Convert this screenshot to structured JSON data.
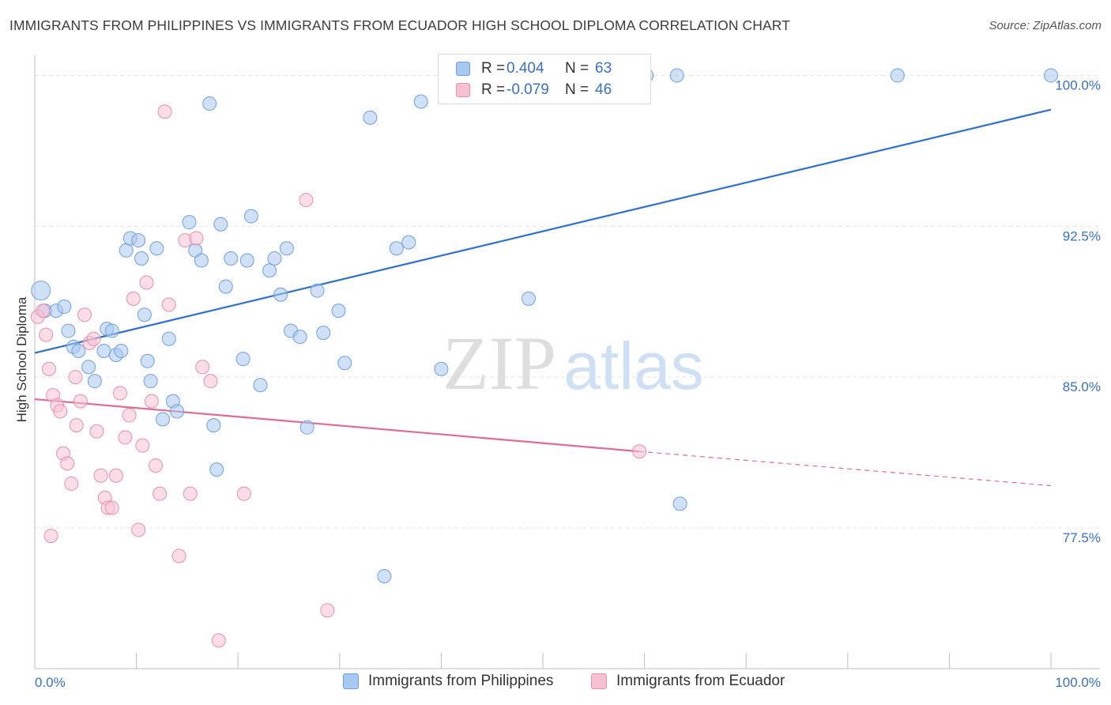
{
  "header": {
    "title": "IMMIGRANTS FROM PHILIPPINES VS IMMIGRANTS FROM ECUADOR HIGH SCHOOL DIPLOMA CORRELATION CHART",
    "source": "Source: ZipAtlas.com"
  },
  "watermark": {
    "zip": "ZIP",
    "atlas": "atlas"
  },
  "legend": {
    "rows": [
      {
        "r_label": "R =",
        "r_value": "0.404",
        "n_label": "N =",
        "n_value": "63",
        "color": "#a9c8f0",
        "border": "#6f9fe0"
      },
      {
        "r_label": "R =",
        "r_value": "-0.079",
        "n_label": "N =",
        "n_value": "46",
        "color": "#f6c1d1",
        "border": "#e890ab"
      }
    ]
  },
  "bottom_legend": [
    {
      "label": "Immigrants from Philippines",
      "color": "#a9c8f0",
      "border": "#6f9fe0"
    },
    {
      "label": "Immigrants from Ecuador",
      "color": "#f6c1d1",
      "border": "#e890ab"
    }
  ],
  "chart_data": {
    "type": "scatter",
    "title": "IMMIGRANTS FROM PHILIPPINES VS IMMIGRANTS FROM ECUADOR HIGH SCHOOL DIPLOMA CORRELATION CHART",
    "xlabel": "",
    "ylabel": "High School Diploma",
    "xlim": [
      0,
      100
    ],
    "ylim": [
      70.5,
      101
    ],
    "x_tick_labels": [
      "0.0%",
      "100.0%"
    ],
    "y_ticks": [
      77.5,
      85.0,
      92.5,
      100.0
    ],
    "y_tick_labels": [
      "77.5%",
      "85.0%",
      "92.5%",
      "100.0%"
    ],
    "grid": true,
    "legend_position": "top-center",
    "series": [
      {
        "name": "Immigrants from Philippines",
        "color": "#6f9fe0",
        "fill": "#a9c8f0",
        "trend": {
          "x": [
            0,
            100
          ],
          "y": [
            86.2,
            98.3
          ],
          "style": "solid",
          "color": "#2f6fd0"
        },
        "points": [
          [
            0.6,
            89.3
          ],
          [
            1.0,
            88.3
          ],
          [
            2.1,
            88.3
          ],
          [
            2.9,
            88.5
          ],
          [
            3.3,
            87.3
          ],
          [
            3.8,
            86.5
          ],
          [
            4.3,
            86.3
          ],
          [
            5.3,
            85.5
          ],
          [
            5.9,
            84.8
          ],
          [
            6.8,
            86.3
          ],
          [
            7.1,
            87.4
          ],
          [
            7.6,
            87.3
          ],
          [
            8.0,
            86.1
          ],
          [
            8.5,
            86.3
          ],
          [
            9.0,
            91.3
          ],
          [
            9.4,
            91.9
          ],
          [
            10.2,
            91.8
          ],
          [
            10.5,
            90.9
          ],
          [
            10.8,
            88.1
          ],
          [
            11.1,
            85.8
          ],
          [
            11.4,
            84.8
          ],
          [
            12.0,
            91.4
          ],
          [
            12.6,
            82.9
          ],
          [
            13.2,
            86.9
          ],
          [
            13.6,
            83.8
          ],
          [
            14.0,
            83.3
          ],
          [
            15.2,
            92.7
          ],
          [
            15.8,
            91.3
          ],
          [
            16.4,
            90.8
          ],
          [
            17.2,
            98.6
          ],
          [
            17.6,
            82.6
          ],
          [
            17.9,
            80.4
          ],
          [
            18.3,
            92.6
          ],
          [
            18.8,
            89.5
          ],
          [
            19.3,
            90.9
          ],
          [
            20.5,
            85.9
          ],
          [
            20.9,
            90.8
          ],
          [
            21.3,
            93.0
          ],
          [
            22.2,
            84.6
          ],
          [
            23.1,
            90.3
          ],
          [
            23.6,
            90.9
          ],
          [
            24.2,
            89.1
          ],
          [
            24.8,
            91.4
          ],
          [
            25.2,
            87.3
          ],
          [
            26.1,
            87.0
          ],
          [
            26.8,
            82.5
          ],
          [
            27.8,
            89.3
          ],
          [
            28.4,
            87.2
          ],
          [
            29.9,
            88.3
          ],
          [
            30.5,
            85.7
          ],
          [
            33.0,
            97.9
          ],
          [
            34.4,
            75.1
          ],
          [
            35.6,
            91.4
          ],
          [
            36.8,
            91.7
          ],
          [
            38.0,
            98.7
          ],
          [
            40.0,
            85.4
          ],
          [
            48.6,
            88.9
          ],
          [
            60.2,
            100.0
          ],
          [
            63.2,
            100.0
          ],
          [
            63.5,
            78.7
          ],
          [
            84.9,
            100.0
          ],
          [
            100.0,
            100.0
          ],
          [
            52.0,
            100.0
          ]
        ]
      },
      {
        "name": "Immigrants from Ecuador",
        "color": "#e890ab",
        "fill": "#f6c1d1",
        "trend": {
          "x": [
            0,
            59.5,
            100
          ],
          "y": [
            83.9,
            81.3,
            79.6
          ],
          "style": "solid-then-dashed",
          "color": "#e06b94"
        },
        "points": [
          [
            0.3,
            88.0
          ],
          [
            0.8,
            88.3
          ],
          [
            1.1,
            87.1
          ],
          [
            1.4,
            85.4
          ],
          [
            1.8,
            84.1
          ],
          [
            2.2,
            83.6
          ],
          [
            2.5,
            83.3
          ],
          [
            2.8,
            81.2
          ],
          [
            3.2,
            80.7
          ],
          [
            3.6,
            79.7
          ],
          [
            4.1,
            82.6
          ],
          [
            4.5,
            83.8
          ],
          [
            4.9,
            88.1
          ],
          [
            5.4,
            86.7
          ],
          [
            5.8,
            86.9
          ],
          [
            6.1,
            82.3
          ],
          [
            6.5,
            80.1
          ],
          [
            6.9,
            79.0
          ],
          [
            7.2,
            78.5
          ],
          [
            7.6,
            78.5
          ],
          [
            8.0,
            80.1
          ],
          [
            8.4,
            84.2
          ],
          [
            8.9,
            82.0
          ],
          [
            9.3,
            83.1
          ],
          [
            9.7,
            88.9
          ],
          [
            10.2,
            77.4
          ],
          [
            10.6,
            81.6
          ],
          [
            11.0,
            89.7
          ],
          [
            11.5,
            83.8
          ],
          [
            11.9,
            80.6
          ],
          [
            12.3,
            79.2
          ],
          [
            12.8,
            98.2
          ],
          [
            13.2,
            88.6
          ],
          [
            14.2,
            76.1
          ],
          [
            14.8,
            91.8
          ],
          [
            15.3,
            79.2
          ],
          [
            15.9,
            91.9
          ],
          [
            16.5,
            85.5
          ],
          [
            17.3,
            84.8
          ],
          [
            18.1,
            71.9
          ],
          [
            20.6,
            79.2
          ],
          [
            26.7,
            93.8
          ],
          [
            28.8,
            73.4
          ],
          [
            59.5,
            81.3
          ],
          [
            1.6,
            77.1
          ],
          [
            4.0,
            85.0
          ]
        ]
      }
    ]
  }
}
